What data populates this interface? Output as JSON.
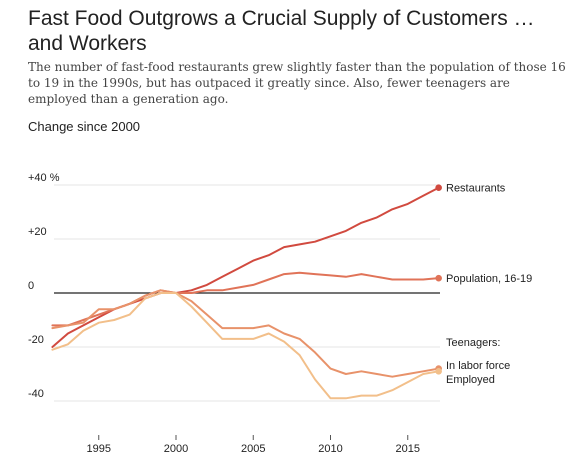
{
  "header": {
    "title": "Fast Food Outgrows a Crucial Supply of Customers … and Workers",
    "subtitle": "The number of fast-food restaurants grew slightly faster than the population of those 16 to 19 in the 1990s, but has outpaced it greatly since. Also, fewer teenagers are employed than a generation ago.",
    "caption": "Change since 2000"
  },
  "chart_data": {
    "type": "line",
    "ylabel": "Change since 2000",
    "xlim": [
      1992,
      2017
    ],
    "ylim": [
      -45,
      45
    ],
    "x_ticks": [
      1995,
      2000,
      2005,
      2010,
      2015
    ],
    "y_ticks": [
      {
        "value": 40,
        "label": "+40 %"
      },
      {
        "value": 20,
        "label": "+20"
      },
      {
        "value": 0,
        "label": "0"
      },
      {
        "value": -20,
        "label": "-20"
      },
      {
        "value": -40,
        "label": "-40"
      }
    ],
    "grid": "horizontal",
    "group_label": "Teenagers:",
    "series": [
      {
        "name": "Restaurants",
        "color": "#d14a3f",
        "x": [
          1992,
          1993,
          1994,
          1995,
          1996,
          1997,
          1998,
          1999,
          2000,
          2001,
          2002,
          2003,
          2004,
          2005,
          2006,
          2007,
          2008,
          2009,
          2010,
          2011,
          2012,
          2013,
          2014,
          2015,
          2016,
          2017
        ],
        "values": [
          -20,
          -15,
          -12,
          -9,
          -6,
          -4,
          -2,
          0,
          0,
          1,
          3,
          6,
          9,
          12,
          14,
          17,
          18,
          19,
          21,
          23,
          26,
          28,
          31,
          33,
          36,
          39
        ]
      },
      {
        "name": "Population, 16-19",
        "color": "#e07358",
        "x": [
          1992,
          1993,
          1994,
          1995,
          1996,
          1997,
          1998,
          1999,
          2000,
          2001,
          2002,
          2003,
          2004,
          2005,
          2006,
          2007,
          2008,
          2009,
          2010,
          2011,
          2012,
          2013,
          2014,
          2015,
          2016,
          2017
        ],
        "values": [
          -12,
          -12,
          -10,
          -8,
          -6,
          -4,
          -1,
          1,
          0,
          0,
          1,
          1,
          2,
          3,
          5,
          7,
          7.5,
          7,
          6.5,
          6,
          7,
          6,
          5,
          5,
          5,
          5.5
        ]
      },
      {
        "name": "In labor force",
        "color": "#e8926a",
        "x": [
          1992,
          1993,
          1994,
          1995,
          1996,
          1997,
          1998,
          1999,
          2000,
          2001,
          2002,
          2003,
          2004,
          2005,
          2006,
          2007,
          2008,
          2009,
          2010,
          2011,
          2012,
          2013,
          2014,
          2015,
          2016,
          2017
        ],
        "values": [
          -13,
          -12,
          -11,
          -6,
          -6,
          -4,
          -1,
          1,
          0,
          -3,
          -8,
          -13,
          -13,
          -13,
          -12,
          -15,
          -17,
          -22,
          -28,
          -30,
          -29,
          -30,
          -31,
          -30,
          -29,
          -28
        ]
      },
      {
        "name": "Employed",
        "color": "#f2bf8a",
        "x": [
          1992,
          1993,
          1994,
          1995,
          1996,
          1997,
          1998,
          1999,
          2000,
          2001,
          2002,
          2003,
          2004,
          2005,
          2006,
          2007,
          2008,
          2009,
          2010,
          2011,
          2012,
          2013,
          2014,
          2015,
          2016,
          2017
        ],
        "values": [
          -21,
          -19,
          -14,
          -11,
          -10,
          -8,
          -2,
          0,
          0,
          -5,
          -11,
          -17,
          -17,
          -17,
          -15,
          -18,
          -23,
          -32,
          -39,
          -39,
          -38,
          -38,
          -36,
          -33,
          -30,
          -29
        ]
      }
    ]
  }
}
